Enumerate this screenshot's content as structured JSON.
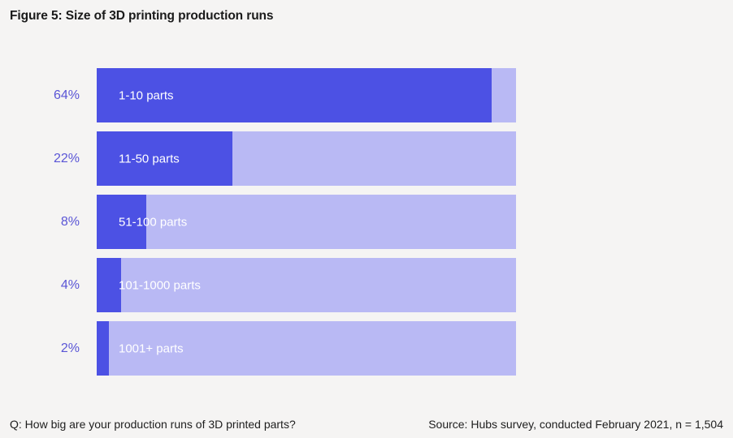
{
  "title": "Figure 5: Size of 3D printing production runs",
  "footer": {
    "question": "Q: How big are your production runs of 3D printed parts?",
    "source": "Source: Hubs survey, conducted February 2021, n = 1,504"
  },
  "colors": {
    "background": "#f5f4f3",
    "bar_fill": "#4c51e4",
    "bar_track": "#b9b9f4",
    "value_label": "#5a55d6",
    "text": "#1a1a1a"
  },
  "chart_data": {
    "type": "bar",
    "orientation": "horizontal",
    "title": "Figure 5: Size of 3D printing production runs",
    "categories": [
      "1-10 parts",
      "11-50 parts",
      "51-100 parts",
      "101-1000 parts",
      "1001+ parts"
    ],
    "values": [
      64,
      22,
      8,
      4,
      2
    ],
    "value_labels": [
      "64%",
      "22%",
      "8%",
      "4%",
      "2%"
    ],
    "unit": "%",
    "xlim": [
      0,
      68
    ],
    "grid": false,
    "legend": false,
    "category_labels_inside_bars": true,
    "value_labels_position": "left-of-bar"
  }
}
